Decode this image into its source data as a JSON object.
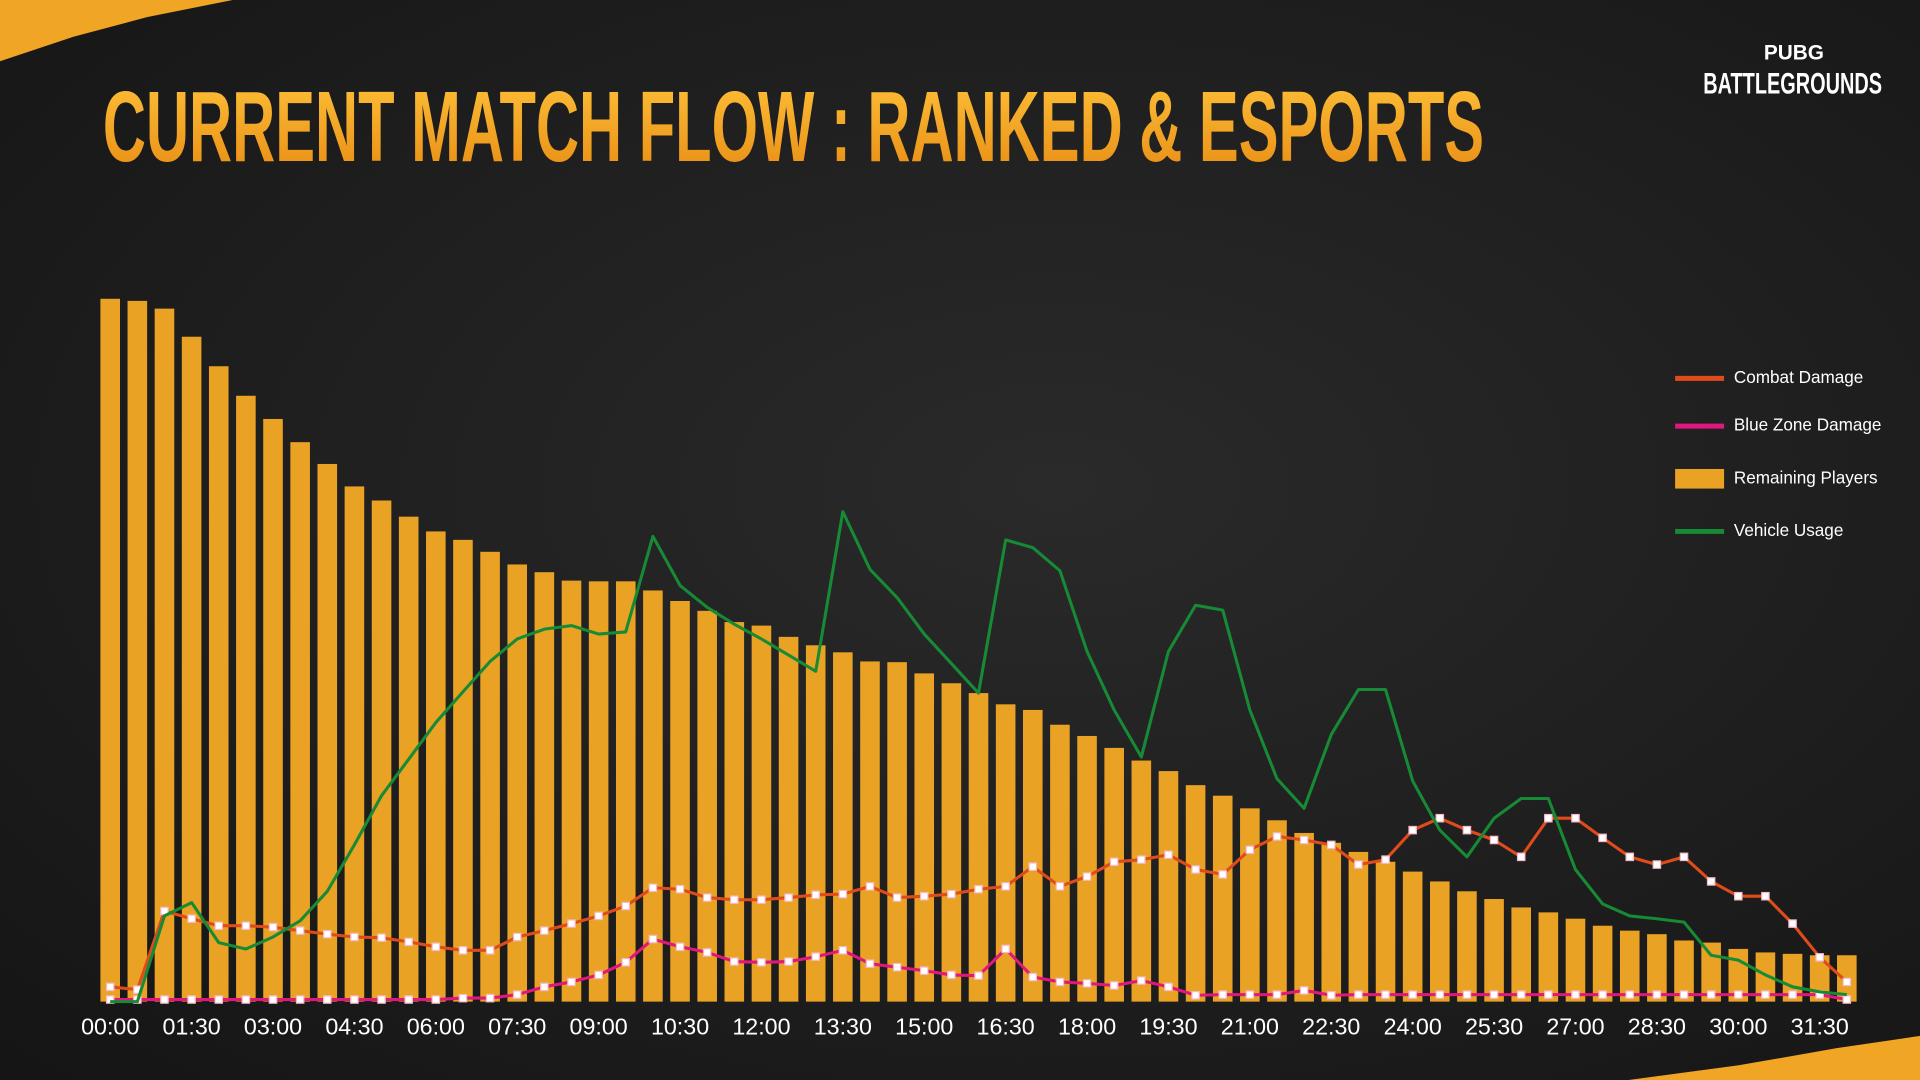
{
  "logo": {
    "top": "PUBG",
    "bottom": "BATTLEGROUNDS"
  },
  "chart_data": {
    "type": "bar",
    "title": "CURRENT MATCH FLOW : RANKED & ESPORTS",
    "categories": [
      "00:00",
      null,
      null,
      "01:30",
      null,
      null,
      "03:00",
      null,
      null,
      "04:30",
      null,
      null,
      "06:00",
      null,
      null,
      "07:30",
      null,
      null,
      "09:00",
      null,
      null,
      "10:30",
      null,
      null,
      "12:00",
      null,
      null,
      "13:30",
      null,
      null,
      "15:00",
      null,
      null,
      "16:30",
      null,
      null,
      "18:00",
      null,
      null,
      "19:30",
      null,
      null,
      "21:00",
      null,
      null,
      "22:30",
      null,
      null,
      "24:00",
      null,
      null,
      "25:30",
      null,
      null,
      "27:00",
      null,
      null,
      "28:30",
      null,
      null,
      "30:00",
      null,
      null,
      "31:30",
      null
    ],
    "ylim": [
      0,
      100
    ],
    "legend": "right",
    "series": [
      {
        "name": "Combat Damage",
        "type": "line",
        "color": "#e04b1c",
        "markers": true,
        "values": [
          2.1,
          1.7,
          12.9,
          11.8,
          10.8,
          10.8,
          10.6,
          10.1,
          9.6,
          9.2,
          9.1,
          8.5,
          7.8,
          7.3,
          7.3,
          9.2,
          10.1,
          11.1,
          12.2,
          13.6,
          16.2,
          16.0,
          14.8,
          14.5,
          14.5,
          14.8,
          15.2,
          15.3,
          16.4,
          14.8,
          15.0,
          15.3,
          16.0,
          16.4,
          19.2,
          16.4,
          17.8,
          19.9,
          20.2,
          20.9,
          18.8,
          18.1,
          21.6,
          23.5,
          23.0,
          22.3,
          19.5,
          20.2,
          24.4,
          26.1,
          24.4,
          23.0,
          20.6,
          26.1,
          26.1,
          23.3,
          20.6,
          19.5,
          20.6,
          17.1,
          15.0,
          15.0,
          11.1,
          6.3,
          2.8
        ]
      },
      {
        "name": "Blue Zone Damage",
        "type": "line",
        "color": "#e0177c",
        "markers": true,
        "values": [
          0.3,
          0.3,
          0.3,
          0.3,
          0.3,
          0.3,
          0.3,
          0.3,
          0.3,
          0.3,
          0.3,
          0.3,
          0.3,
          0.5,
          0.5,
          1.0,
          2.1,
          2.8,
          3.8,
          5.6,
          8.9,
          7.8,
          7.0,
          5.7,
          5.6,
          5.7,
          6.4,
          7.3,
          5.4,
          4.9,
          4.4,
          3.8,
          3.7,
          7.5,
          3.5,
          2.8,
          2.6,
          2.3,
          3.0,
          2.1,
          0.9,
          1.0,
          1.0,
          1.0,
          1.6,
          0.9,
          1.0,
          1.0,
          1.0,
          1.0,
          1.0,
          1.0,
          1.0,
          1.0,
          1.0,
          1.0,
          1.0,
          1.0,
          1.0,
          1.0,
          1.0,
          1.0,
          1.0,
          1.0,
          0.3
        ]
      },
      {
        "name": "Remaining Players",
        "type": "bar",
        "color": "#e9a224",
        "values": [
          100,
          99.7,
          98.6,
          94.6,
          90.4,
          86.2,
          82.9,
          79.6,
          76.5,
          73.3,
          71.3,
          69,
          66.9,
          65.7,
          64,
          62.2,
          61.1,
          59.9,
          59.8,
          59.8,
          58.5,
          57,
          55.6,
          54,
          53.5,
          51.9,
          50.7,
          49.7,
          48.4,
          48.3,
          46.7,
          45.3,
          43.9,
          42.3,
          41.5,
          39.4,
          37.8,
          36.1,
          34.3,
          32.8,
          30.8,
          29.3,
          27.5,
          25.8,
          24,
          22.6,
          21.3,
          19.9,
          18.5,
          17.1,
          15.7,
          14.6,
          13.4,
          12.7,
          11.8,
          10.8,
          10.1,
          9.6,
          8.7,
          8.4,
          7.5,
          7,
          6.8,
          6.6,
          6.6
        ]
      },
      {
        "name": "Vehicle Usage",
        "type": "line",
        "color": "#178a36",
        "markers": false,
        "values": [
          0,
          0,
          12.2,
          14.1,
          8.4,
          7.5,
          9.2,
          11.5,
          15.7,
          22.3,
          29.3,
          34.5,
          39.7,
          44.1,
          48.4,
          51.6,
          53.0,
          53.5,
          52.3,
          52.6,
          66.2,
          59.2,
          56.1,
          53.7,
          51.6,
          49.3,
          47.0,
          69.7,
          61.5,
          57.5,
          52.3,
          48.1,
          43.9,
          65.7,
          64.6,
          61.3,
          49.8,
          41.5,
          34.8,
          49.8,
          56.4,
          55.7,
          41.5,
          31.7,
          27.5,
          38.0,
          44.4,
          44.4,
          31.4,
          24.4,
          20.6,
          26.1,
          28.9,
          28.9,
          18.8,
          13.9,
          12.2,
          11.8,
          11.3,
          6.6,
          5.9,
          3.8,
          2.1,
          1.4,
          1.0
        ]
      }
    ]
  }
}
